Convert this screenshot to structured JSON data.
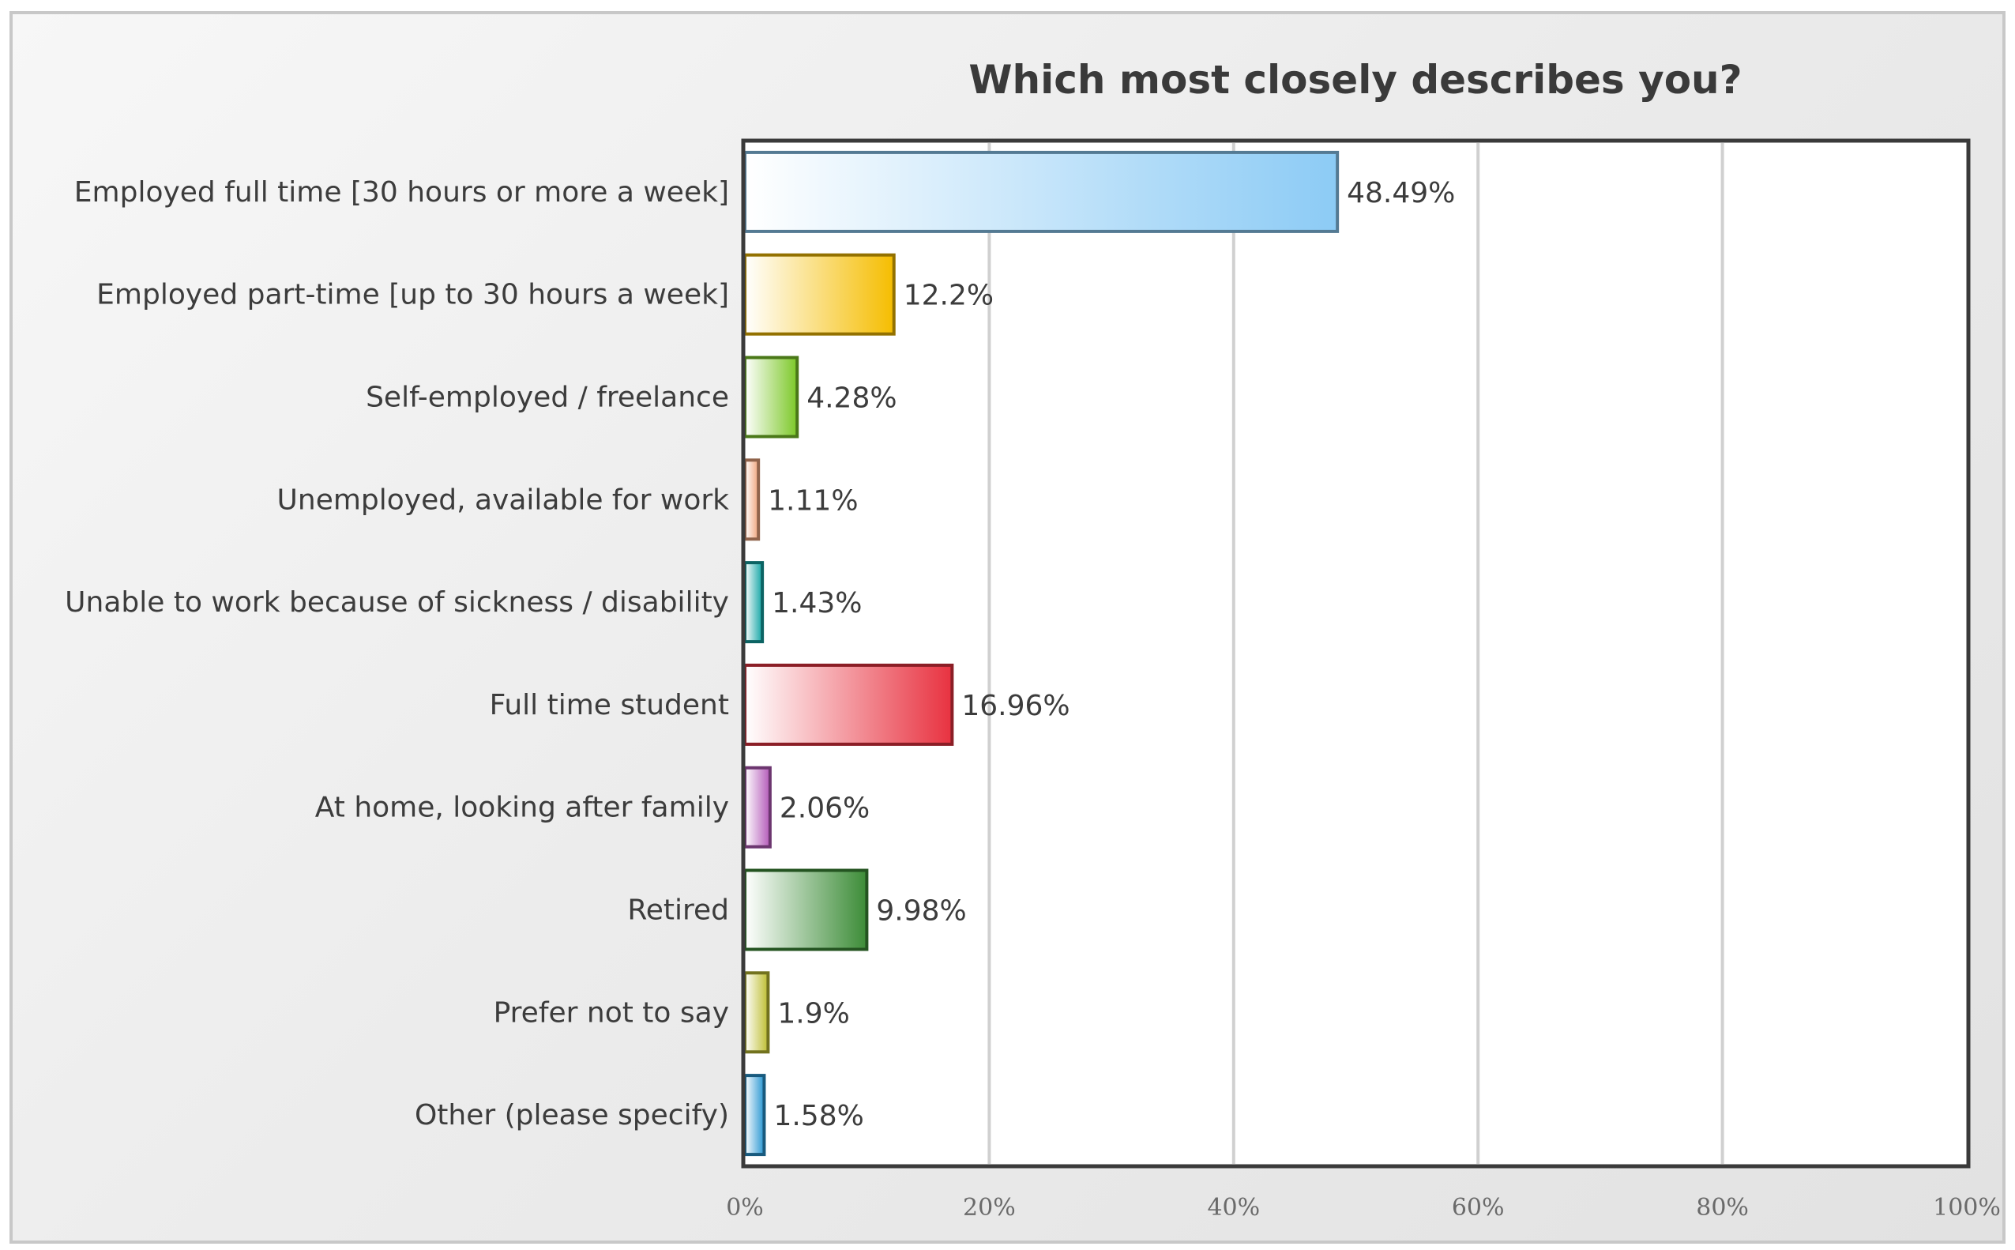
{
  "chart_data": {
    "type": "bar",
    "orientation": "horizontal",
    "title": "Which most closely describes you?",
    "xlabel": "",
    "ylabel": "",
    "xlim": [
      0,
      100
    ],
    "x_tick_values": [
      0,
      20,
      40,
      60,
      80,
      100
    ],
    "x_ticks": [
      "0%",
      "20%",
      "40%",
      "60%",
      "80%",
      "100%"
    ],
    "grid": "vertical",
    "legend": "none",
    "categories": [
      "Employed full time [30 hours or more a week]",
      "Employed part-time [up to 30 hours a week]",
      "Self-employed / freelance",
      "Unemployed, available for work",
      "Unable to work because of sickness / disability",
      "Full time student",
      "At home, looking after family",
      "Retired",
      "Prefer not to say",
      "Other (please specify)"
    ],
    "values": [
      48.49,
      12.2,
      4.28,
      1.11,
      1.43,
      16.96,
      2.06,
      9.98,
      1.9,
      1.58
    ],
    "value_labels": [
      "48.49%",
      "12.2%",
      "4.28%",
      "1.11%",
      "1.43%",
      "16.96%",
      "2.06%",
      "9.98%",
      "1.9%",
      "1.58%"
    ],
    "colors": [
      "#8ccbf5",
      "#f5bd00",
      "#7cc828",
      "#f0a57d",
      "#14a5a5",
      "#e83240",
      "#b45ab9",
      "#3c8c37",
      "#bebe32",
      "#2896d2"
    ]
  }
}
